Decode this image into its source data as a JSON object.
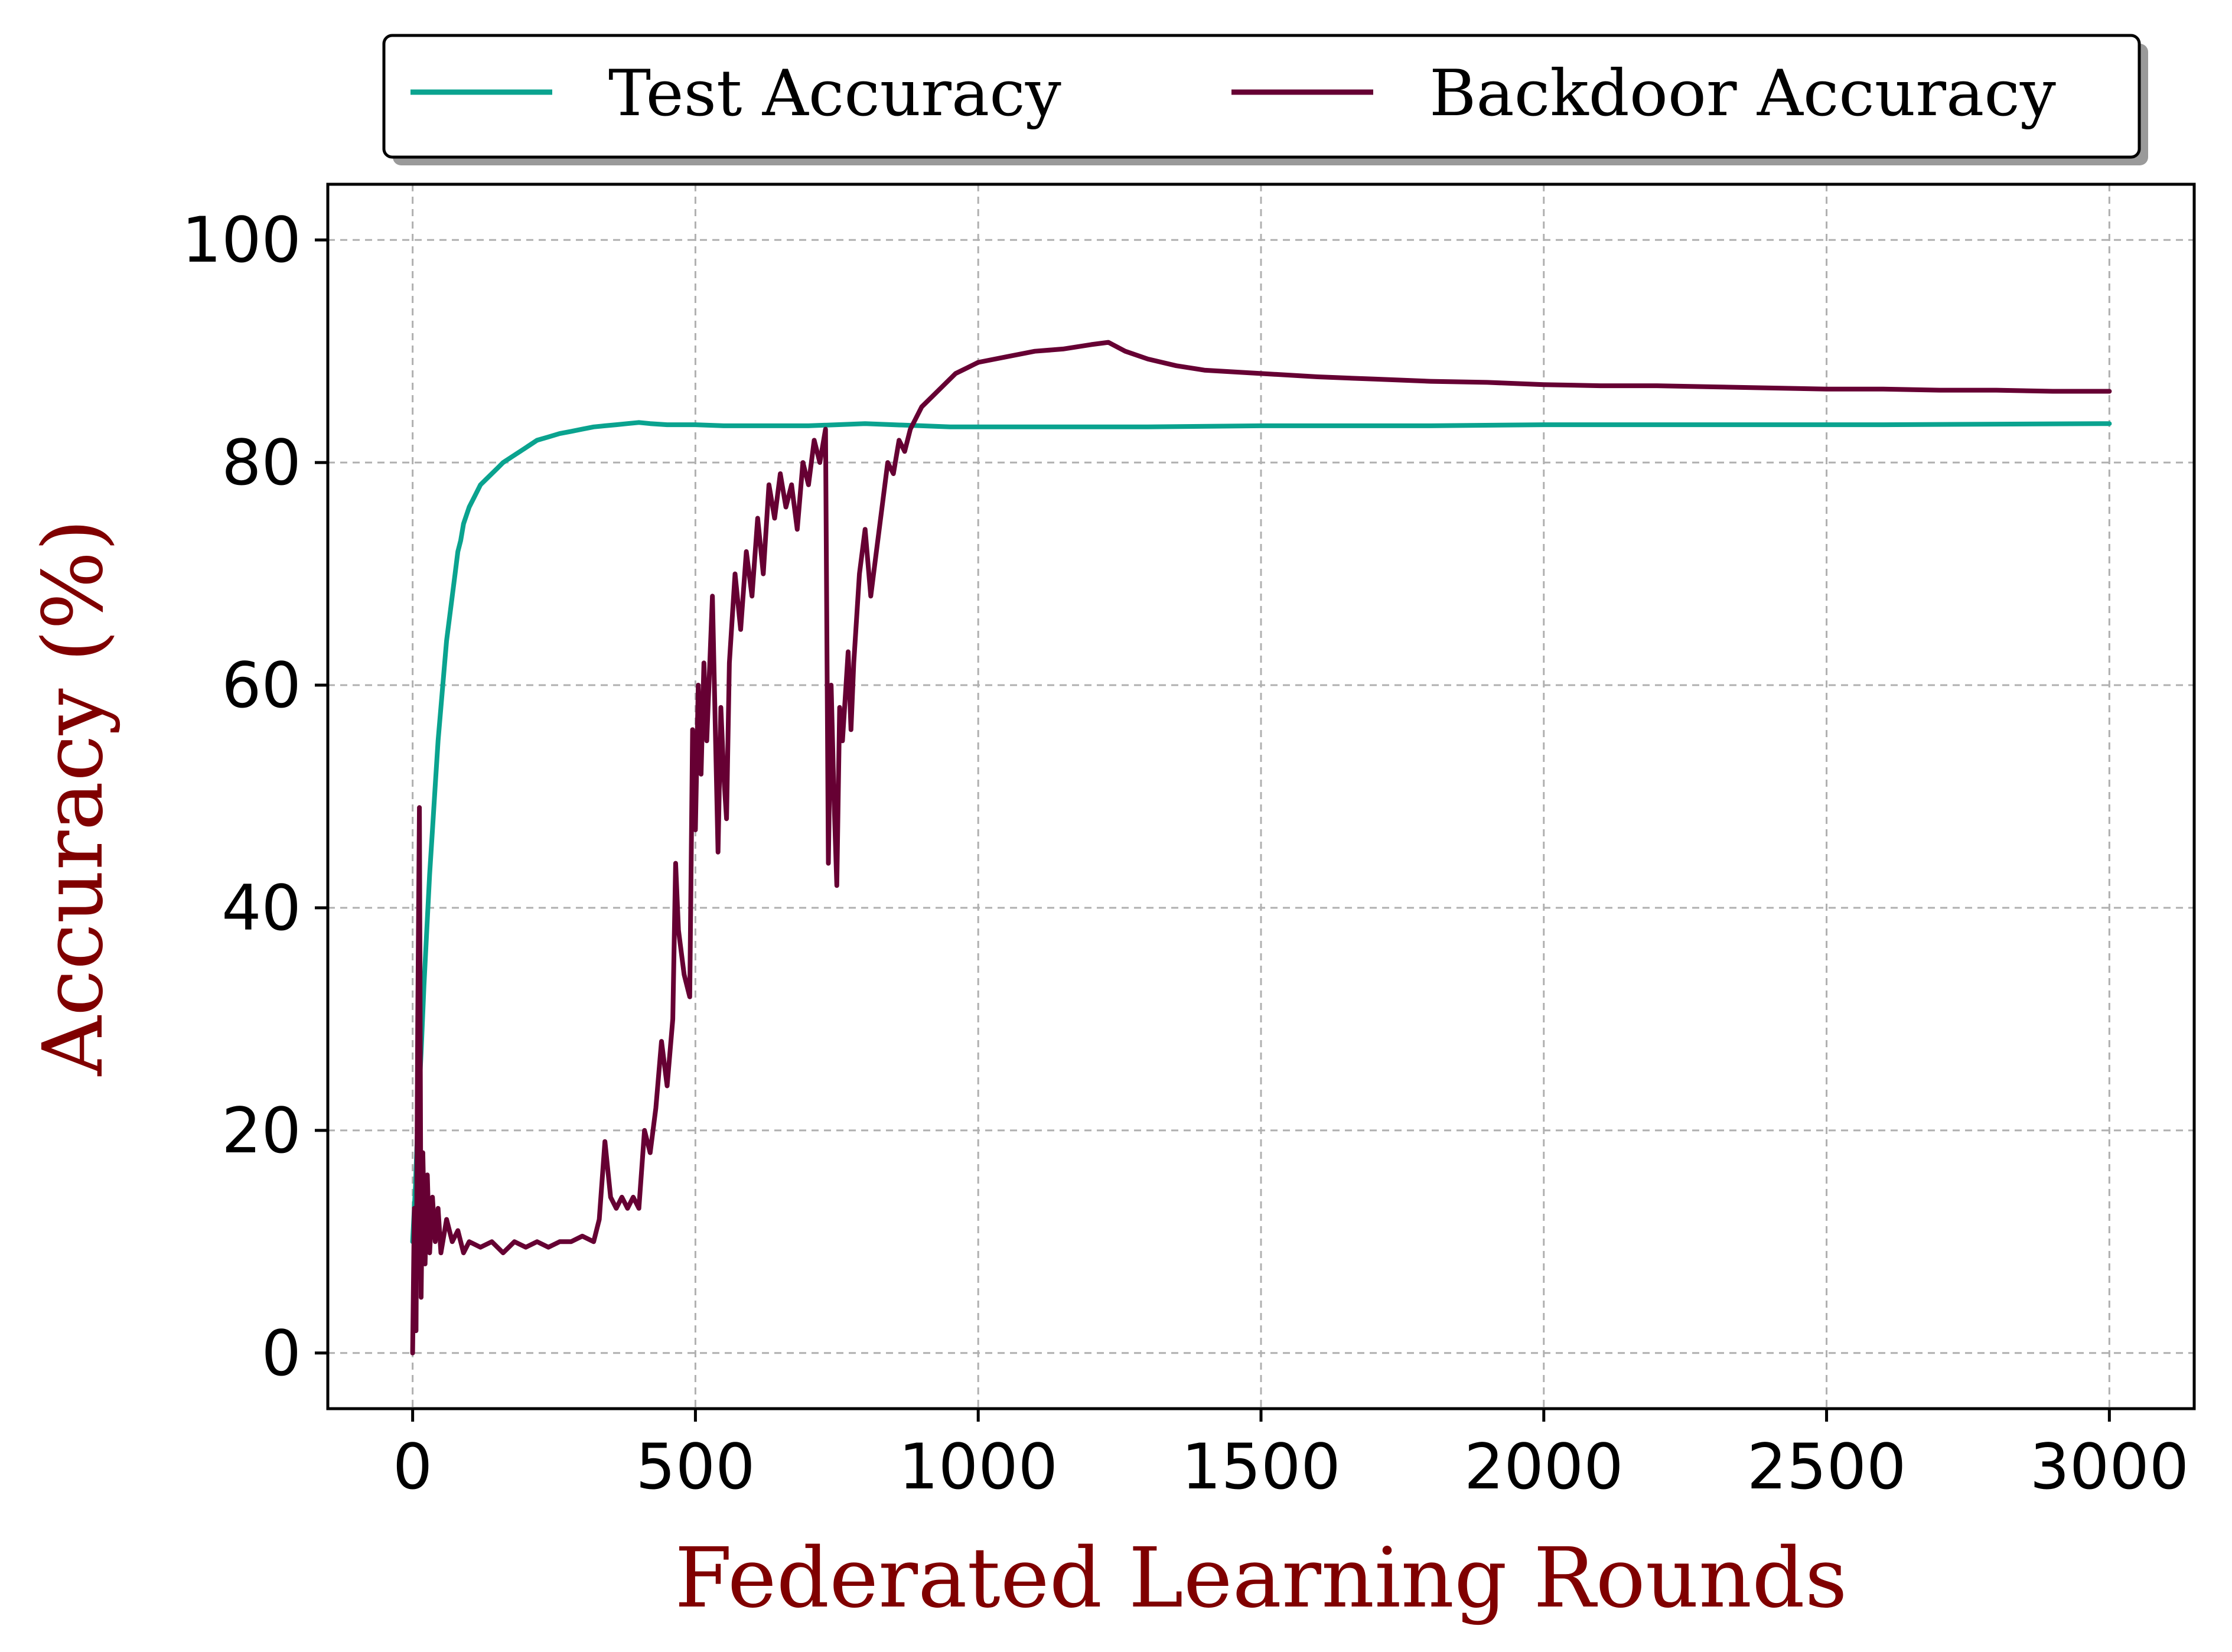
{
  "chart_data": {
    "type": "line",
    "xlabel": "Federated Learning Rounds",
    "ylabel": "Accuracy (%)",
    "xlim": [
      -150,
      3150
    ],
    "ylim": [
      -5,
      105
    ],
    "xticks": [
      0,
      500,
      1000,
      1500,
      2000,
      2500,
      3000
    ],
    "yticks": [
      0,
      20,
      40,
      60,
      80,
      100
    ],
    "grid": true,
    "legend_position": "top-center, above plot",
    "series": [
      {
        "name": "Test Accuracy",
        "color": "#0aa38f",
        "points": [
          [
            0,
            10
          ],
          [
            5,
            15
          ],
          [
            10,
            22
          ],
          [
            15,
            27
          ],
          [
            20,
            33
          ],
          [
            25,
            38
          ],
          [
            30,
            43
          ],
          [
            35,
            47
          ],
          [
            40,
            51
          ],
          [
            45,
            55
          ],
          [
            50,
            58
          ],
          [
            55,
            61
          ],
          [
            60,
            64
          ],
          [
            65,
            66
          ],
          [
            70,
            68
          ],
          [
            75,
            70
          ],
          [
            80,
            72
          ],
          [
            85,
            73
          ],
          [
            90,
            74.5
          ],
          [
            100,
            76
          ],
          [
            110,
            77
          ],
          [
            120,
            78
          ],
          [
            130,
            78.5
          ],
          [
            140,
            79
          ],
          [
            150,
            79.5
          ],
          [
            160,
            80
          ],
          [
            175,
            80.5
          ],
          [
            190,
            81
          ],
          [
            205,
            81.5
          ],
          [
            220,
            82
          ],
          [
            240,
            82.3
          ],
          [
            260,
            82.6
          ],
          [
            280,
            82.8
          ],
          [
            300,
            83
          ],
          [
            320,
            83.2
          ],
          [
            340,
            83.3
          ],
          [
            360,
            83.4
          ],
          [
            380,
            83.5
          ],
          [
            400,
            83.6
          ],
          [
            420,
            83.5
          ],
          [
            450,
            83.4
          ],
          [
            500,
            83.4
          ],
          [
            550,
            83.3
          ],
          [
            600,
            83.3
          ],
          [
            650,
            83.3
          ],
          [
            700,
            83.3
          ],
          [
            750,
            83.4
          ],
          [
            800,
            83.5
          ],
          [
            850,
            83.4
          ],
          [
            900,
            83.3
          ],
          [
            950,
            83.2
          ],
          [
            1000,
            83.2
          ],
          [
            1100,
            83.2
          ],
          [
            1200,
            83.2
          ],
          [
            1300,
            83.2
          ],
          [
            1500,
            83.3
          ],
          [
            1800,
            83.3
          ],
          [
            2000,
            83.4
          ],
          [
            2300,
            83.4
          ],
          [
            2600,
            83.4
          ],
          [
            3000,
            83.5
          ]
        ]
      },
      {
        "name": "Backdoor Accuracy",
        "color": "#660033",
        "points": [
          [
            0,
            0
          ],
          [
            3,
            13
          ],
          [
            6,
            2
          ],
          [
            9,
            30
          ],
          [
            12,
            49
          ],
          [
            15,
            5
          ],
          [
            18,
            18
          ],
          [
            22,
            8
          ],
          [
            26,
            16
          ],
          [
            30,
            9
          ],
          [
            35,
            14
          ],
          [
            40,
            10
          ],
          [
            45,
            13
          ],
          [
            50,
            9
          ],
          [
            60,
            12
          ],
          [
            70,
            10
          ],
          [
            80,
            11
          ],
          [
            90,
            9
          ],
          [
            100,
            10
          ],
          [
            120,
            9.5
          ],
          [
            140,
            10
          ],
          [
            160,
            9
          ],
          [
            180,
            10
          ],
          [
            200,
            9.5
          ],
          [
            220,
            10
          ],
          [
            240,
            9.5
          ],
          [
            260,
            10
          ],
          [
            280,
            10
          ],
          [
            300,
            10.5
          ],
          [
            320,
            10
          ],
          [
            330,
            12
          ],
          [
            340,
            19
          ],
          [
            350,
            14
          ],
          [
            360,
            13
          ],
          [
            370,
            14
          ],
          [
            380,
            13
          ],
          [
            390,
            14
          ],
          [
            400,
            13
          ],
          [
            410,
            20
          ],
          [
            420,
            18
          ],
          [
            430,
            22
          ],
          [
            440,
            28
          ],
          [
            450,
            24
          ],
          [
            460,
            30
          ],
          [
            465,
            44
          ],
          [
            470,
            38
          ],
          [
            480,
            34
          ],
          [
            490,
            32
          ],
          [
            495,
            56
          ],
          [
            500,
            47
          ],
          [
            505,
            60
          ],
          [
            510,
            52
          ],
          [
            515,
            62
          ],
          [
            520,
            55
          ],
          [
            530,
            68
          ],
          [
            540,
            45
          ],
          [
            545,
            58
          ],
          [
            550,
            52
          ],
          [
            555,
            48
          ],
          [
            560,
            62
          ],
          [
            570,
            70
          ],
          [
            580,
            65
          ],
          [
            590,
            72
          ],
          [
            600,
            68
          ],
          [
            610,
            75
          ],
          [
            620,
            70
          ],
          [
            630,
            78
          ],
          [
            640,
            75
          ],
          [
            650,
            79
          ],
          [
            660,
            76
          ],
          [
            670,
            78
          ],
          [
            680,
            74
          ],
          [
            690,
            80
          ],
          [
            700,
            78
          ],
          [
            710,
            82
          ],
          [
            720,
            80
          ],
          [
            730,
            83
          ],
          [
            735,
            44
          ],
          [
            740,
            60
          ],
          [
            745,
            50
          ],
          [
            750,
            42
          ],
          [
            755,
            58
          ],
          [
            760,
            55
          ],
          [
            770,
            63
          ],
          [
            775,
            56
          ],
          [
            780,
            62
          ],
          [
            790,
            70
          ],
          [
            800,
            74
          ],
          [
            810,
            68
          ],
          [
            820,
            72
          ],
          [
            830,
            76
          ],
          [
            840,
            80
          ],
          [
            850,
            79
          ],
          [
            860,
            82
          ],
          [
            870,
            81
          ],
          [
            880,
            83
          ],
          [
            890,
            84
          ],
          [
            900,
            85
          ],
          [
            920,
            86
          ],
          [
            940,
            87
          ],
          [
            960,
            88
          ],
          [
            980,
            88.5
          ],
          [
            1000,
            89
          ],
          [
            1050,
            89.5
          ],
          [
            1100,
            90
          ],
          [
            1150,
            90.2
          ],
          [
            1200,
            90.6
          ],
          [
            1230,
            90.8
          ],
          [
            1260,
            90
          ],
          [
            1300,
            89.3
          ],
          [
            1350,
            88.7
          ],
          [
            1400,
            88.3
          ],
          [
            1500,
            88
          ],
          [
            1600,
            87.7
          ],
          [
            1700,
            87.5
          ],
          [
            1800,
            87.3
          ],
          [
            1900,
            87.2
          ],
          [
            2000,
            87
          ],
          [
            2100,
            86.9
          ],
          [
            2200,
            86.9
          ],
          [
            2300,
            86.8
          ],
          [
            2400,
            86.7
          ],
          [
            2500,
            86.6
          ],
          [
            2600,
            86.6
          ],
          [
            2700,
            86.5
          ],
          [
            2800,
            86.5
          ],
          [
            2900,
            86.4
          ],
          [
            3000,
            86.4
          ]
        ]
      }
    ]
  }
}
